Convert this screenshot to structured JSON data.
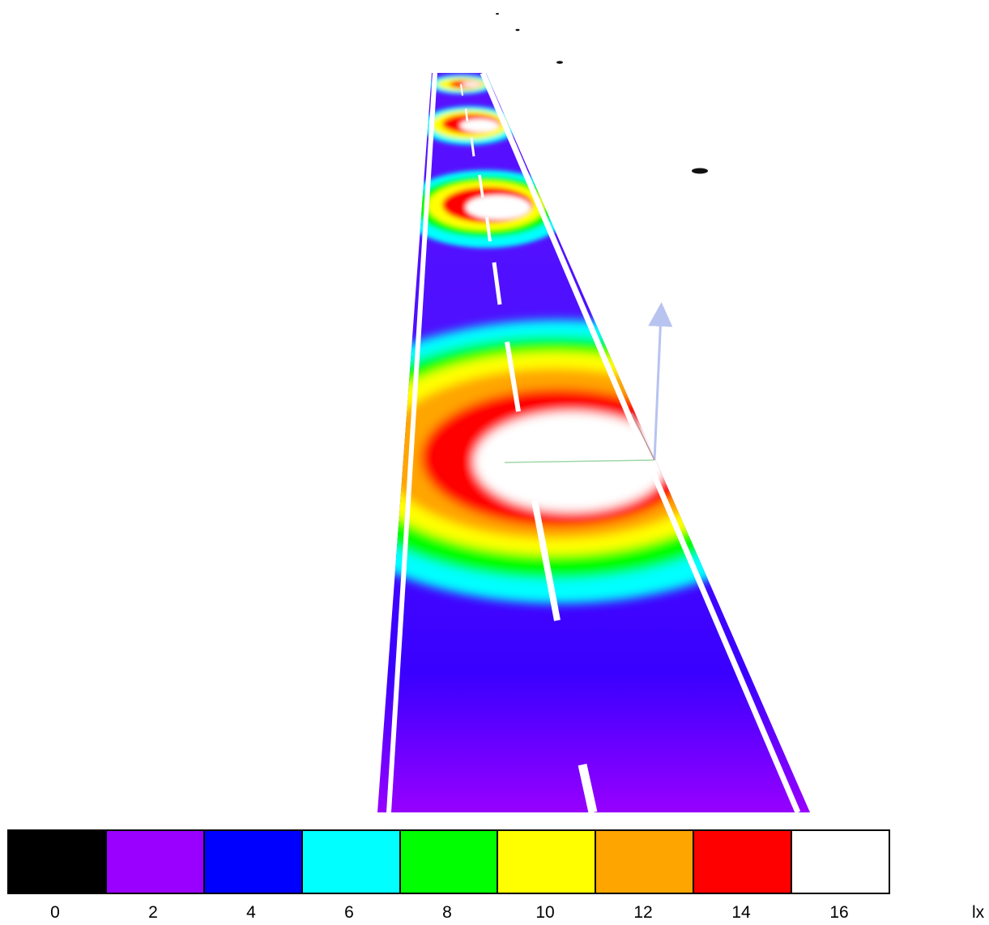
{
  "legend": {
    "colors": [
      "#000000",
      "#9900ff",
      "#0000ff",
      "#00ffff",
      "#00ff00",
      "#ffff00",
      "#ffa500",
      "#ff0000",
      "#ffffff"
    ],
    "labels": [
      "0",
      "2",
      "4",
      "6",
      "8",
      "10",
      "12",
      "14",
      "16"
    ],
    "unit": "lx"
  },
  "scene": {
    "base_color": "#6a00ff",
    "marking_color": "#ffffff",
    "axis_color": "#b8c3f0"
  }
}
